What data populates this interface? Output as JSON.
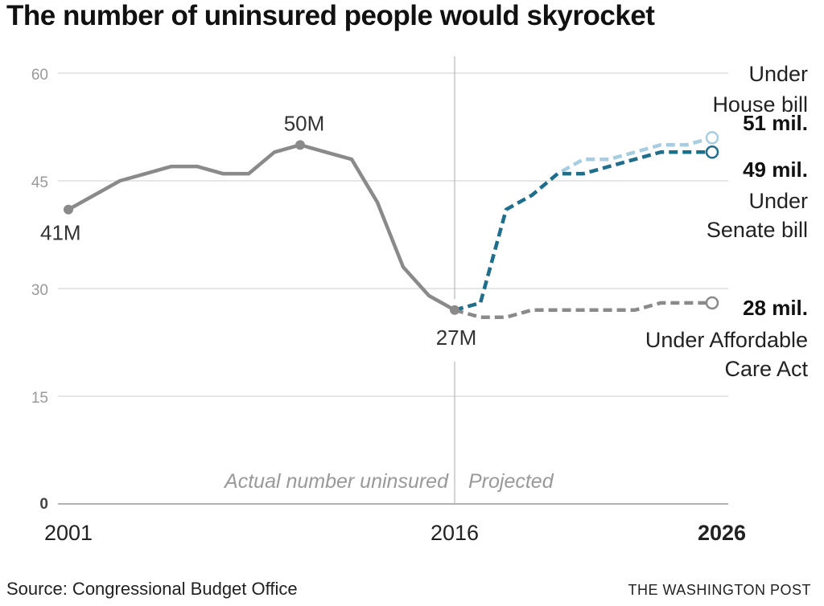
{
  "title": "The number of uninsured people would skyrocket",
  "source": "Source: Congressional Budget Office",
  "credit": "THE WASHINGTON POST",
  "colors": {
    "actual": "#8a8a8a",
    "aca": "#8a8a8a",
    "senate": "#1f6e8c",
    "house": "#a9cde0",
    "grid": "#cccccc",
    "divider": "#aaaaaa"
  },
  "chart_data": {
    "type": "line",
    "title": "The number of uninsured people would skyrocket",
    "ylim": [
      0,
      60
    ],
    "xlim": [
      2001,
      2026
    ],
    "y_ticks": [
      {
        "value": 60,
        "label": "60"
      },
      {
        "value": 45,
        "label": "45"
      },
      {
        "value": 30,
        "label": "30"
      },
      {
        "value": 15,
        "label": "15"
      },
      {
        "value": 0,
        "label": "0"
      }
    ],
    "x_ticks": [
      {
        "value": 2001,
        "label": "2001"
      },
      {
        "value": 2016,
        "label": "2016"
      },
      {
        "value": 2026,
        "label": "2026"
      }
    ],
    "section_labels": {
      "actual": "Actual number uninsured",
      "projected": "Projected"
    },
    "series": [
      {
        "key": "actual",
        "x": [
          2001,
          2002,
          2003,
          2004,
          2005,
          2006,
          2007,
          2008,
          2009,
          2010,
          2011,
          2012,
          2013,
          2014,
          2015,
          2016
        ],
        "values": [
          41,
          43,
          45,
          46,
          47,
          47,
          46,
          46,
          49,
          50,
          49,
          48,
          42,
          33,
          29,
          27
        ],
        "style": "solid"
      },
      {
        "key": "aca",
        "name": "Under Affordable Care Act",
        "x": [
          2016,
          2017,
          2018,
          2019,
          2020,
          2021,
          2022,
          2023,
          2024,
          2025,
          2026
        ],
        "values": [
          27,
          26,
          26,
          27,
          27,
          27,
          27,
          27,
          28,
          28,
          28
        ],
        "style": "dashed"
      },
      {
        "key": "senate",
        "name": "Under Senate bill",
        "x": [
          2016,
          2017,
          2018,
          2019,
          2020,
          2021,
          2022,
          2023,
          2024,
          2025,
          2026
        ],
        "values": [
          27,
          28,
          41,
          43,
          46,
          46,
          47,
          48,
          49,
          49,
          49
        ],
        "style": "dashed"
      },
      {
        "key": "house",
        "name": "Under House bill",
        "x": [
          2016,
          2017,
          2018,
          2019,
          2020,
          2021,
          2022,
          2023,
          2024,
          2025,
          2026
        ],
        "values": [
          27,
          28,
          41,
          43,
          46,
          48,
          48,
          49,
          50,
          50,
          51
        ],
        "style": "dashed"
      }
    ],
    "point_labels": [
      {
        "x": 2001,
        "y": 41,
        "text": "41M"
      },
      {
        "x": 2010,
        "y": 50,
        "text": "50M"
      },
      {
        "x": 2016,
        "y": 27,
        "text": "27M"
      }
    ],
    "end_labels": [
      {
        "series": "house",
        "value_text": "51 mil.",
        "name_lines": [
          "Under",
          "House bill"
        ]
      },
      {
        "series": "senate",
        "value_text": "49 mil.",
        "name_lines": [
          "Under",
          "Senate bill"
        ]
      },
      {
        "series": "aca",
        "value_text": "28 mil.",
        "name_lines": [
          "Under Affordable",
          "Care Act"
        ]
      }
    ]
  }
}
